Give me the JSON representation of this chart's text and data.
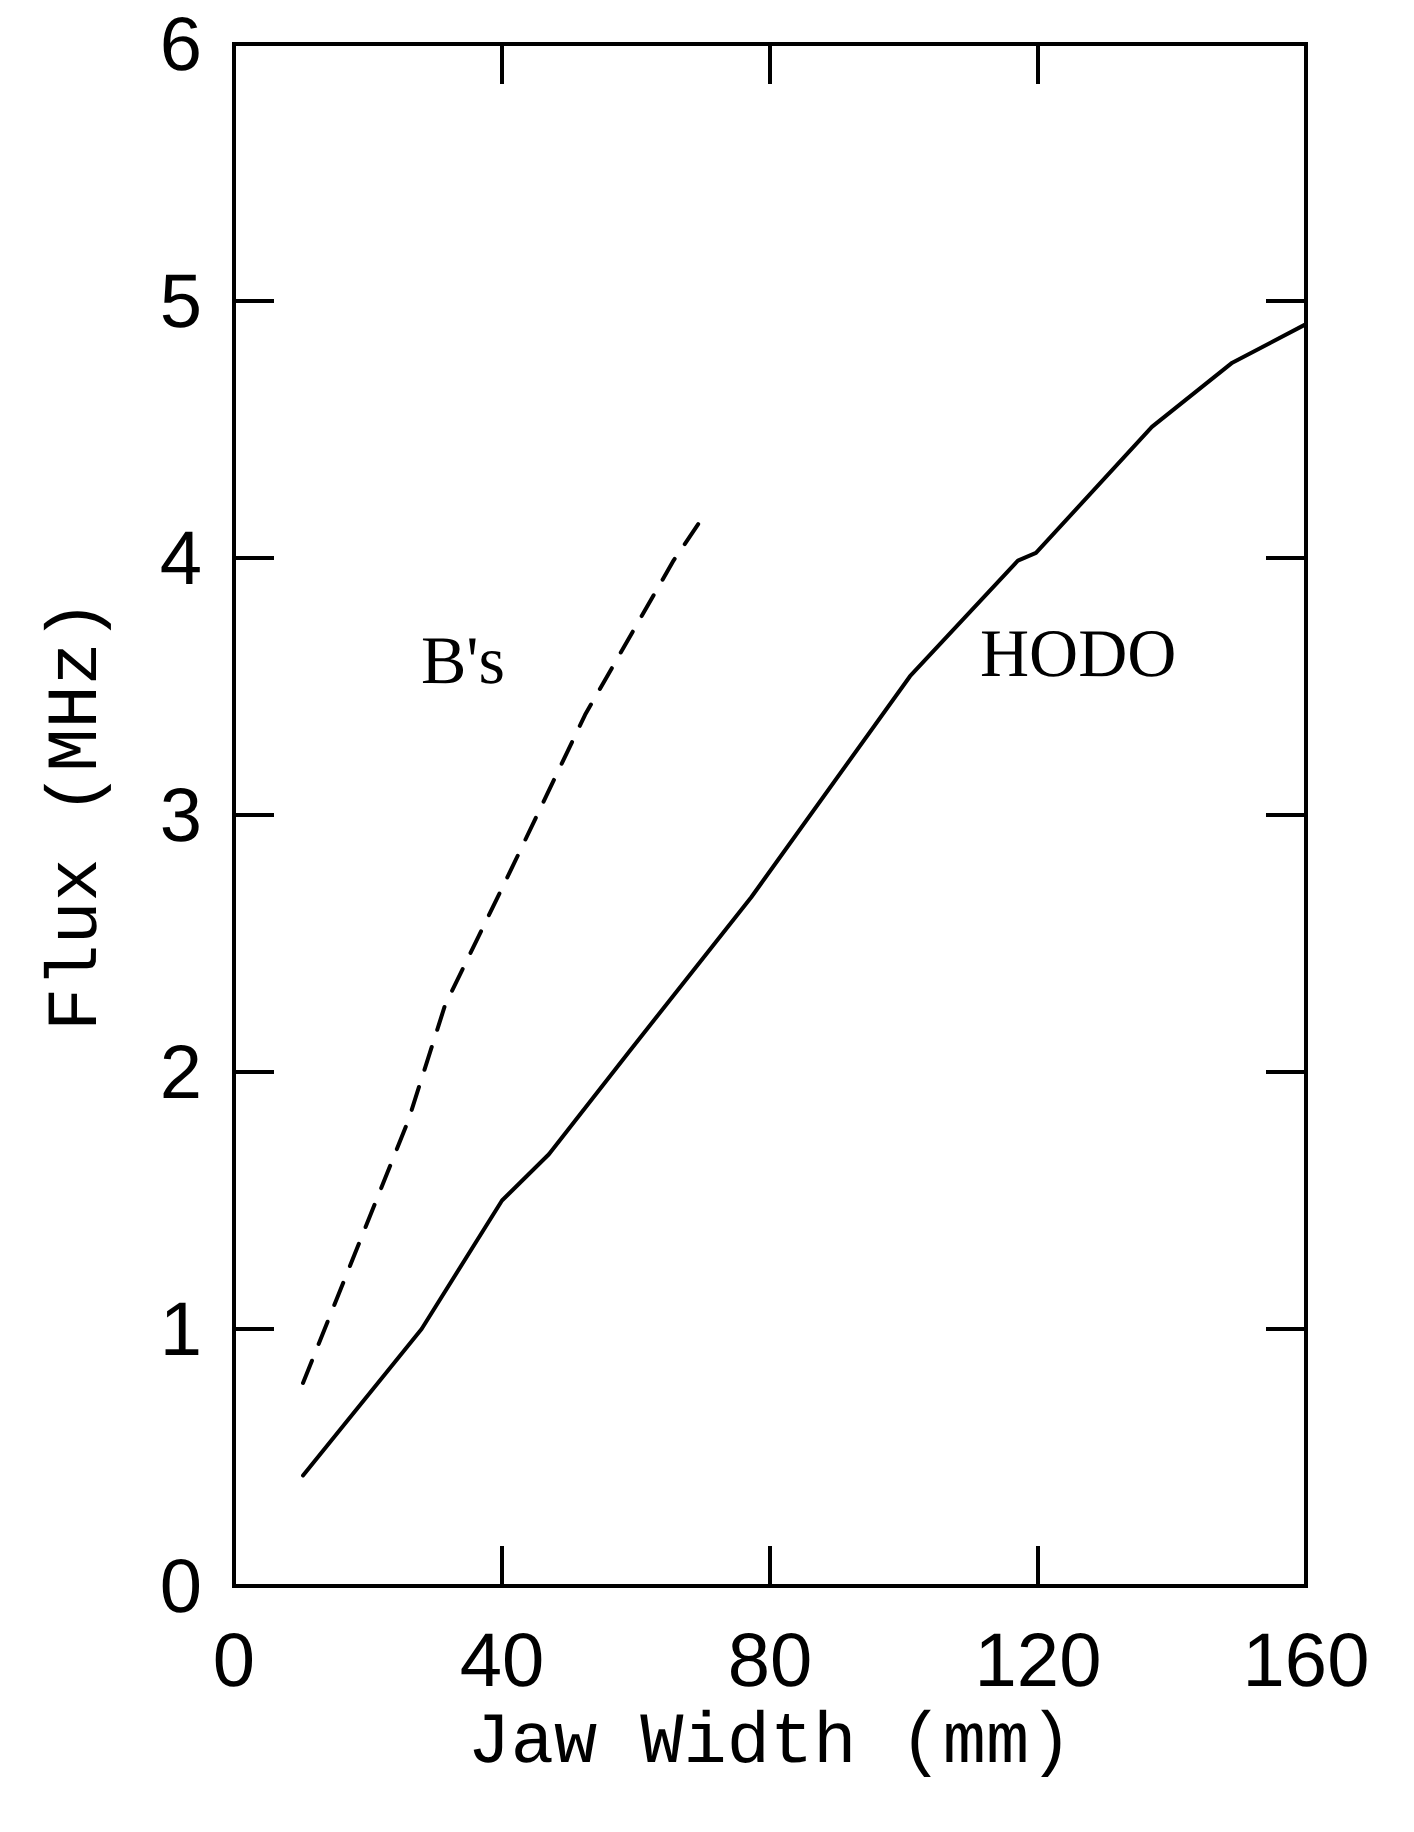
{
  "chart_data": {
    "type": "line",
    "xlabel": "Jaw Width (mm)",
    "ylabel": "Flux (MHz)",
    "xlim": [
      0,
      160
    ],
    "xticks": [
      0,
      40,
      80,
      120,
      160
    ],
    "ylim": [
      0,
      6
    ],
    "yticks": [
      0,
      1,
      2,
      3,
      4,
      5,
      6
    ],
    "grid": false,
    "marker": "none",
    "series": [
      {
        "name": "B's",
        "color": "#000000",
        "line_style": "dashed",
        "x": [
          10.3,
          26,
          31.5,
          41.4,
          52.4,
          65.6,
          69.5
        ],
        "values": [
          0.79,
          1.81,
          2.26,
          2.79,
          3.39,
          3.99,
          4.14
        ]
      },
      {
        "name": "HODO",
        "color": "#000000",
        "line_style": "solid",
        "x": [
          10.3,
          28,
          40,
          47,
          59,
          77.2,
          100.9,
          117,
          119.7,
          137,
          149,
          160
        ],
        "values": [
          0.43,
          1.0,
          1.5,
          1.68,
          2.08,
          2.68,
          3.54,
          3.99,
          4.02,
          4.51,
          4.76,
          4.91
        ]
      }
    ]
  }
}
